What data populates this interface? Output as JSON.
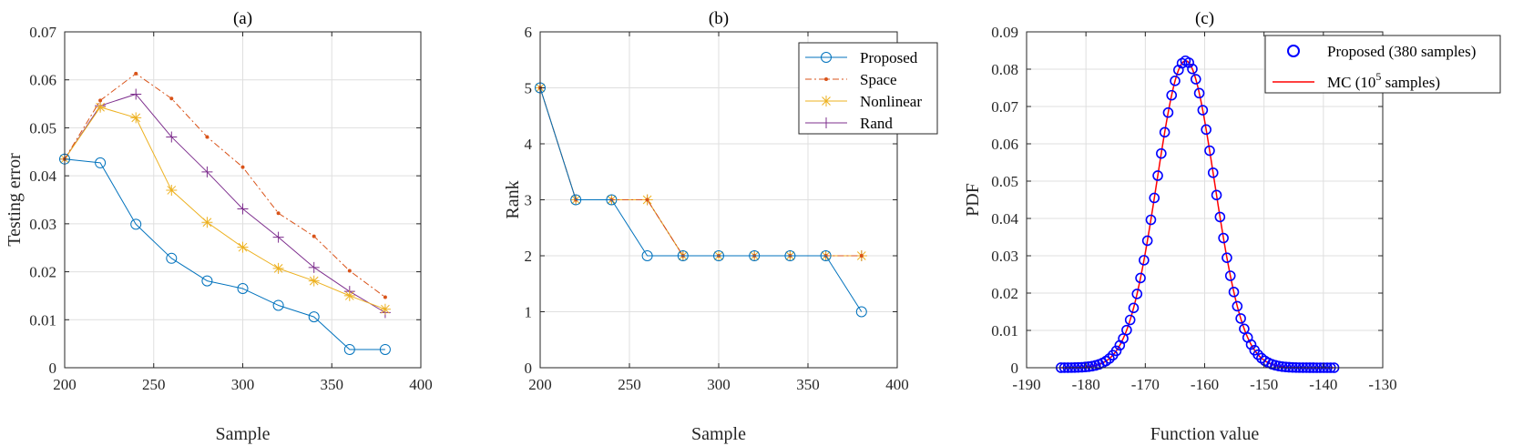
{
  "chart_data": [
    {
      "type": "line",
      "title": "(a)",
      "xlabel": "Sample",
      "ylabel": "Testing error",
      "xlim": [
        200,
        400
      ],
      "ylim": [
        0,
        0.07
      ],
      "xticks": [
        200,
        250,
        300,
        350,
        400
      ],
      "yticks": [
        0,
        0.01,
        0.02,
        0.03,
        0.04,
        0.05,
        0.06,
        0.07
      ],
      "xtick_labels": [
        "200",
        "250",
        "300",
        "350",
        "400"
      ],
      "ytick_labels": [
        "0",
        "0.01",
        "0.02",
        "0.03",
        "0.04",
        "0.05",
        "0.06",
        "0.07"
      ],
      "grid": true,
      "legend": false,
      "series": [
        {
          "name": "Proposed",
          "color": "#0072BD",
          "marker": "circle",
          "dash": "solid",
          "x": [
            200,
            220,
            240,
            260,
            280,
            300,
            320,
            340,
            360,
            380
          ],
          "y": [
            0.0435,
            0.0427,
            0.0299,
            0.0228,
            0.0181,
            0.0165,
            0.013,
            0.0106,
            0.0038,
            0.0038
          ]
        },
        {
          "name": "Space",
          "color": "#D95319",
          "marker": "point",
          "dash": "dashdot",
          "x": [
            200,
            220,
            240,
            260,
            280,
            300,
            320,
            340,
            360,
            380
          ],
          "y": [
            0.0435,
            0.0557,
            0.0613,
            0.0561,
            0.0481,
            0.0418,
            0.0322,
            0.0274,
            0.0202,
            0.0147
          ]
        },
        {
          "name": "Nonlinear",
          "color": "#EDB120",
          "marker": "star",
          "dash": "solid",
          "x": [
            200,
            220,
            240,
            260,
            280,
            300,
            320,
            340,
            360,
            380
          ],
          "y": [
            0.0435,
            0.0543,
            0.0521,
            0.037,
            0.0303,
            0.0251,
            0.0207,
            0.0181,
            0.015,
            0.0122
          ]
        },
        {
          "name": "Rand",
          "color": "#7E2F8E",
          "marker": "plus",
          "dash": "solid",
          "x": [
            200,
            220,
            240,
            260,
            280,
            300,
            320,
            340,
            360,
            380
          ],
          "y": [
            0.0435,
            0.0546,
            0.057,
            0.0481,
            0.0408,
            0.0331,
            0.0272,
            0.0209,
            0.0159,
            0.0115
          ]
        }
      ]
    },
    {
      "type": "line",
      "title": "(b)",
      "xlabel": "Sample",
      "ylabel": "Rank",
      "xlim": [
        200,
        400
      ],
      "ylim": [
        0,
        6
      ],
      "xticks": [
        200,
        250,
        300,
        350,
        400
      ],
      "yticks": [
        0,
        1,
        2,
        3,
        4,
        5,
        6
      ],
      "xtick_labels": [
        "200",
        "250",
        "300",
        "350",
        "400"
      ],
      "ytick_labels": [
        "0",
        "1",
        "2",
        "3",
        "4",
        "5",
        "6"
      ],
      "grid": true,
      "legend": true,
      "legend_position": "top-right",
      "series": [
        {
          "name": "Proposed",
          "color": "#0072BD",
          "marker": "circle",
          "dash": "solid",
          "x": [
            200,
            220,
            240,
            260,
            280,
            300,
            320,
            340,
            360,
            380
          ],
          "y": [
            5,
            3,
            3,
            2,
            2,
            2,
            2,
            2,
            2,
            1
          ]
        },
        {
          "name": "Space",
          "color": "#D95319",
          "marker": "point",
          "dash": "dashdot",
          "x": [
            200,
            220,
            240,
            260,
            280,
            300,
            320,
            340,
            360,
            380
          ],
          "y": [
            5,
            3,
            3,
            3,
            2,
            2,
            2,
            2,
            2,
            2
          ]
        },
        {
          "name": "Nonlinear",
          "color": "#EDB120",
          "marker": "star",
          "dash": "solid",
          "x": [
            200,
            220,
            240,
            260,
            280,
            300,
            320,
            340,
            360,
            380
          ],
          "y": [
            5,
            3,
            3,
            3,
            2,
            2,
            2,
            2,
            2,
            2
          ]
        },
        {
          "name": "Rand",
          "color": "#7E2F8E",
          "marker": "plus",
          "dash": "solid",
          "x": [
            200,
            220,
            240,
            260,
            280,
            300,
            320,
            340,
            360,
            380
          ],
          "y": [
            5,
            3,
            3,
            3,
            2,
            2,
            2,
            2,
            2,
            2
          ]
        }
      ]
    },
    {
      "type": "line",
      "title": "(c)",
      "xlabel": "Function value",
      "ylabel": "PDF",
      "xlim": [
        -190,
        -130
      ],
      "ylim": [
        0,
        0.09
      ],
      "xticks": [
        -190,
        -180,
        -170,
        -160,
        -150,
        -140,
        -130
      ],
      "yticks": [
        0,
        0.01,
        0.02,
        0.03,
        0.04,
        0.05,
        0.06,
        0.07,
        0.08,
        0.09
      ],
      "xtick_labels": [
        "-190",
        "-180",
        "-170",
        "-160",
        "-150",
        "-140",
        "-130"
      ],
      "ytick_labels": [
        "0",
        "0.01",
        "0.02",
        "0.03",
        "0.04",
        "0.05",
        "0.06",
        "0.07",
        "0.08",
        "0.09"
      ],
      "grid": true,
      "legend": true,
      "legend_position": "top-right",
      "legend_labels": {
        "proposed": "Proposed (380 samples)",
        "mc_prefix": "MC (10",
        "mc_exponent": "5",
        "mc_suffix": " samples)"
      },
      "distribution": {
        "mean": -163.2,
        "std": 4.85,
        "x_min": -184.2,
        "x_max": -138.2,
        "num_points": 80
      },
      "series": [
        {
          "name": "Proposed (380 samples)",
          "color": "#0000FF",
          "marker": "circle-open",
          "dash": "none"
        },
        {
          "name": "MC (10^5 samples)",
          "color": "#FF0000",
          "marker": "none",
          "dash": "solid"
        }
      ]
    }
  ]
}
